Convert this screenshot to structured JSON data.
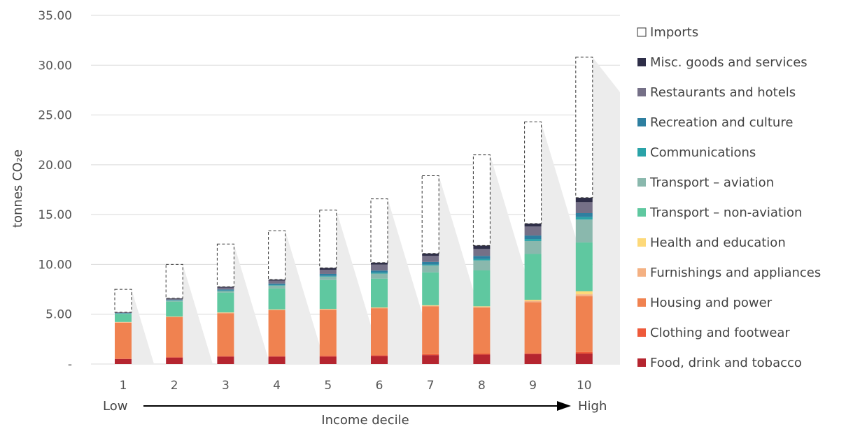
{
  "chart_data": {
    "type": "bar",
    "stacked": true,
    "xlabel": "Income decile",
    "ylabel": "tonnes CO₂e",
    "ylim": [
      0,
      35
    ],
    "y_ticks": [
      0,
      5,
      10,
      15,
      20,
      25,
      30,
      35
    ],
    "y_tick_labels": [
      "-",
      "5.00",
      "10.00",
      "15.00",
      "20.00",
      "25.00",
      "30.00",
      "35.00"
    ],
    "grid": true,
    "legend_position": "right",
    "direction_labels": {
      "low": "Low",
      "high": "High"
    },
    "categories": [
      "1",
      "2",
      "3",
      "4",
      "5",
      "6",
      "7",
      "8",
      "9",
      "10"
    ],
    "series": [
      {
        "name": "Food, drink and tobacco",
        "color": "#b5252f",
        "values": [
          0.5,
          0.65,
          0.75,
          0.75,
          0.75,
          0.8,
          0.9,
          0.95,
          1.0,
          1.05
        ]
      },
      {
        "name": "Clothing and footwear",
        "color": "#ee5a3a",
        "values": [
          0.05,
          0.05,
          0.05,
          0.05,
          0.1,
          0.1,
          0.1,
          0.1,
          0.1,
          0.15
        ]
      },
      {
        "name": "Housing and power",
        "color": "#f08250",
        "values": [
          3.6,
          4.0,
          4.3,
          4.6,
          4.6,
          4.7,
          4.8,
          4.6,
          5.1,
          5.6
        ]
      },
      {
        "name": "Furnishings and appliances",
        "color": "#f4b183",
        "values": [
          0.05,
          0.05,
          0.05,
          0.05,
          0.05,
          0.05,
          0.05,
          0.1,
          0.15,
          0.2
        ]
      },
      {
        "name": "Health and education",
        "color": "#fdd97a",
        "values": [
          0.02,
          0.02,
          0.03,
          0.03,
          0.03,
          0.03,
          0.05,
          0.05,
          0.1,
          0.3
        ]
      },
      {
        "name": "Transport – non-aviation",
        "color": "#5fc8a0",
        "values": [
          0.8,
          1.5,
          2.0,
          2.1,
          2.9,
          2.9,
          3.3,
          3.6,
          4.6,
          4.9
        ]
      },
      {
        "name": "Transport – aviation",
        "color": "#8ab8ad",
        "values": [
          0.05,
          0.1,
          0.15,
          0.3,
          0.35,
          0.5,
          0.7,
          1.0,
          1.3,
          2.3
        ]
      },
      {
        "name": "Communications",
        "color": "#2aa3a8",
        "values": [
          0.02,
          0.03,
          0.05,
          0.05,
          0.07,
          0.1,
          0.1,
          0.15,
          0.2,
          0.25
        ]
      },
      {
        "name": "Recreation and culture",
        "color": "#2e7fa0",
        "values": [
          0.03,
          0.05,
          0.1,
          0.15,
          0.2,
          0.2,
          0.25,
          0.3,
          0.35,
          0.4
        ]
      },
      {
        "name": "Restaurants and hotels",
        "color": "#757087",
        "values": [
          0.05,
          0.1,
          0.2,
          0.3,
          0.4,
          0.6,
          0.6,
          0.7,
          0.9,
          1.1
        ]
      },
      {
        "name": "Misc. goods and services",
        "color": "#2e2e48",
        "values": [
          0.03,
          0.05,
          0.07,
          0.1,
          0.2,
          0.2,
          0.25,
          0.35,
          0.3,
          0.45
        ]
      },
      {
        "name": "Imports",
        "color": "#ffffff",
        "outline": "dashed",
        "values": [
          2.3,
          3.4,
          4.3,
          4.9,
          5.8,
          6.4,
          7.8,
          9.1,
          10.2,
          14.1
        ]
      }
    ],
    "totals": [
      7.5,
      10.0,
      12.0,
      13.4,
      15.4,
      16.6,
      18.9,
      21.0,
      24.2,
      30.8
    ]
  }
}
